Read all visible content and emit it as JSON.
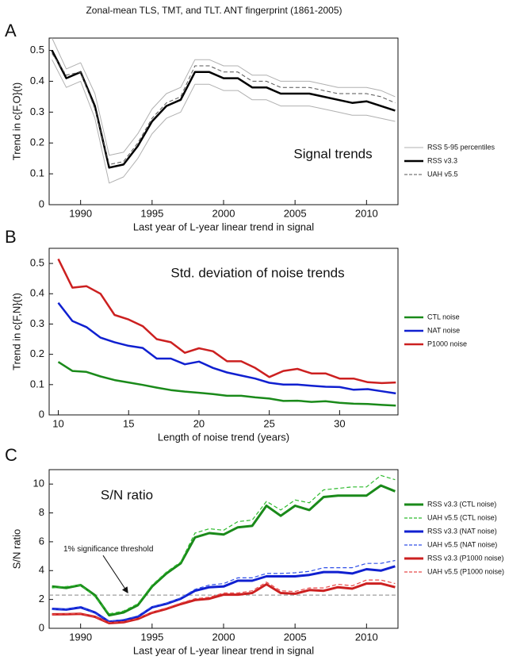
{
  "chart_data": [
    {
      "type": "line",
      "panel": "A",
      "title": "Zonal-mean TLS, TMT, and TLT. ANT fingerprint (1861-2005)",
      "annotation": "Signal trends",
      "x_label": "Last year of L-year linear trend in signal",
      "y_label": "Trend in c{F,O}(t)",
      "x": [
        1988,
        1989,
        1990,
        1991,
        1992,
        1993,
        1994,
        1995,
        1996,
        1997,
        1998,
        1999,
        2000,
        2001,
        2002,
        2003,
        2004,
        2005,
        2006,
        2007,
        2008,
        2009,
        2010,
        2011,
        2012
      ],
      "xlim": [
        1987.8,
        2012.2
      ],
      "xticks": [
        1990,
        1995,
        2000,
        2005,
        2010
      ],
      "ylim": [
        0,
        0.54
      ],
      "yticks": [
        0,
        0.1,
        0.2,
        0.3,
        0.4,
        0.5
      ],
      "percentiles": {
        "name": "RSS 5-95 percentiles",
        "color": "#b0b0b0",
        "lower": [
          0.47,
          0.38,
          0.4,
          0.28,
          0.07,
          0.09,
          0.15,
          0.23,
          0.28,
          0.3,
          0.39,
          0.39,
          0.37,
          0.37,
          0.34,
          0.34,
          0.32,
          0.32,
          0.32,
          0.31,
          0.3,
          0.29,
          0.29,
          0.28,
          0.27
        ],
        "upper": [
          0.54,
          0.44,
          0.46,
          0.36,
          0.16,
          0.17,
          0.23,
          0.31,
          0.36,
          0.38,
          0.47,
          0.47,
          0.45,
          0.45,
          0.42,
          0.42,
          0.4,
          0.4,
          0.4,
          0.39,
          0.38,
          0.38,
          0.38,
          0.37,
          0.35
        ]
      },
      "series": [
        {
          "name": "RSS v3.3",
          "color": "#000000",
          "width": 2.5,
          "dash": false,
          "values": [
            0.5,
            0.41,
            0.43,
            0.32,
            0.12,
            0.13,
            0.19,
            0.27,
            0.32,
            0.34,
            0.43,
            0.43,
            0.41,
            0.41,
            0.38,
            0.38,
            0.36,
            0.36,
            0.36,
            0.35,
            0.34,
            0.33,
            0.335,
            0.32,
            0.305
          ]
        },
        {
          "name": "UAH v5.5",
          "color": "#555555",
          "width": 1,
          "dash": true,
          "values": [
            0.49,
            0.42,
            0.43,
            0.31,
            0.13,
            0.14,
            0.2,
            0.28,
            0.33,
            0.35,
            0.45,
            0.45,
            0.43,
            0.43,
            0.4,
            0.4,
            0.38,
            0.38,
            0.38,
            0.37,
            0.36,
            0.36,
            0.36,
            0.35,
            0.33
          ]
        }
      ]
    },
    {
      "type": "line",
      "panel": "B",
      "annotation": "Std. deviation of noise trends",
      "x_label": "Length of noise trend (years)",
      "y_label": "Trend in c{F,N}(t)",
      "x": [
        10,
        11,
        12,
        13,
        14,
        15,
        16,
        17,
        18,
        19,
        20,
        21,
        22,
        23,
        24,
        25,
        26,
        27,
        28,
        29,
        30,
        31,
        32,
        33,
        34
      ],
      "xlim": [
        9.35,
        34.15
      ],
      "xticks": [
        10,
        15,
        20,
        25,
        30
      ],
      "ylim": [
        0,
        0.55
      ],
      "yticks": [
        0,
        0.1,
        0.2,
        0.3,
        0.4,
        0.5
      ],
      "series": [
        {
          "name": "CTL noise",
          "color": "#1a8a1a",
          "width": 2.5,
          "dash": false,
          "values": [
            0.175,
            0.145,
            0.142,
            0.127,
            0.115,
            0.107,
            0.099,
            0.09,
            0.082,
            0.077,
            0.073,
            0.069,
            0.063,
            0.063,
            0.058,
            0.054,
            0.046,
            0.047,
            0.043,
            0.045,
            0.04,
            0.037,
            0.036,
            0.033,
            0.031
          ]
        },
        {
          "name": "NAT noise",
          "color": "#1020d0",
          "width": 2.5,
          "dash": false,
          "values": [
            0.37,
            0.31,
            0.29,
            0.255,
            0.24,
            0.228,
            0.221,
            0.186,
            0.186,
            0.167,
            0.176,
            0.155,
            0.14,
            0.13,
            0.12,
            0.106,
            0.1,
            0.1,
            0.096,
            0.093,
            0.092,
            0.083,
            0.085,
            0.078,
            0.071
          ]
        },
        {
          "name": "P1000 noise",
          "color": "#cc2020",
          "width": 2.5,
          "dash": false,
          "values": [
            0.515,
            0.42,
            0.425,
            0.4,
            0.33,
            0.315,
            0.293,
            0.25,
            0.24,
            0.205,
            0.22,
            0.21,
            0.177,
            0.177,
            0.155,
            0.125,
            0.145,
            0.152,
            0.137,
            0.137,
            0.12,
            0.12,
            0.108,
            0.105,
            0.107
          ]
        }
      ]
    },
    {
      "type": "line",
      "panel": "C",
      "annotation": "S/N ratio",
      "x_label": "Last year of L-year linear trend in signal",
      "y_label": "S/N ratio",
      "threshold": {
        "value": 2.3,
        "label": "1% significance threshold"
      },
      "x": [
        1988,
        1989,
        1990,
        1991,
        1992,
        1993,
        1994,
        1995,
        1996,
        1997,
        1998,
        1999,
        2000,
        2001,
        2002,
        2003,
        2004,
        2005,
        2006,
        2007,
        2008,
        2009,
        2010,
        2011,
        2012
      ],
      "xlim": [
        1987.8,
        2012.2
      ],
      "xticks": [
        1990,
        1995,
        2000,
        2005,
        2010
      ],
      "ylim": [
        0,
        11
      ],
      "yticks": [
        0,
        2,
        4,
        6,
        8,
        10
      ],
      "series": [
        {
          "name": "RSS v3.3 (CTL noise)",
          "color": "#1a8a1a",
          "width": 3,
          "dash": false,
          "values": [
            2.9,
            2.8,
            3.0,
            2.3,
            0.9,
            1.1,
            1.6,
            2.9,
            3.8,
            4.5,
            6.3,
            6.6,
            6.5,
            7.0,
            7.1,
            8.5,
            7.8,
            8.5,
            8.2,
            9.1,
            9.2,
            9.2,
            9.2,
            9.9,
            9.5
          ]
        },
        {
          "name": "UAH v5.5 (CTL noise)",
          "color": "#2dbb2d",
          "width": 1.2,
          "dash": true,
          "values": [
            2.8,
            2.9,
            3.0,
            2.2,
            1.0,
            1.2,
            1.7,
            3.0,
            3.9,
            4.6,
            6.6,
            6.9,
            6.8,
            7.4,
            7.5,
            8.8,
            8.2,
            8.9,
            8.7,
            9.6,
            9.7,
            9.8,
            9.8,
            10.6,
            10.3
          ]
        },
        {
          "name": "RSS v3.3 (NAT noise)",
          "color": "#1020d0",
          "width": 3,
          "dash": false,
          "values": [
            1.35,
            1.3,
            1.45,
            1.1,
            0.45,
            0.55,
            0.8,
            1.45,
            1.7,
            2.05,
            2.6,
            2.85,
            2.9,
            3.3,
            3.3,
            3.6,
            3.6,
            3.6,
            3.7,
            3.9,
            3.9,
            3.8,
            4.1,
            4.0,
            4.3
          ]
        },
        {
          "name": "UAH v5.5 (NAT noise)",
          "color": "#3050e8",
          "width": 1.2,
          "dash": true,
          "values": [
            1.3,
            1.35,
            1.5,
            1.05,
            0.5,
            0.6,
            0.85,
            1.5,
            1.75,
            2.1,
            2.7,
            3.0,
            3.1,
            3.5,
            3.5,
            3.8,
            3.8,
            3.85,
            3.95,
            4.2,
            4.2,
            4.2,
            4.5,
            4.5,
            4.7
          ]
        },
        {
          "name": "RSS v3.3 (P1000 noise)",
          "color": "#cc2020",
          "width": 3,
          "dash": false,
          "values": [
            0.97,
            0.98,
            1.0,
            0.8,
            0.36,
            0.42,
            0.65,
            1.08,
            1.35,
            1.68,
            1.96,
            2.05,
            2.33,
            2.33,
            2.45,
            3.05,
            2.45,
            2.4,
            2.65,
            2.6,
            2.85,
            2.75,
            3.1,
            3.1,
            2.85
          ]
        },
        {
          "name": "UAH v5.5 (P1000 noise)",
          "color": "#e84a4a",
          "width": 1.2,
          "dash": true,
          "values": [
            0.95,
            1.0,
            1.02,
            0.78,
            0.4,
            0.45,
            0.7,
            1.12,
            1.4,
            1.75,
            2.05,
            2.15,
            2.45,
            2.45,
            2.6,
            3.2,
            2.6,
            2.55,
            2.8,
            2.8,
            3.05,
            2.95,
            3.35,
            3.35,
            3.1
          ]
        }
      ]
    }
  ]
}
